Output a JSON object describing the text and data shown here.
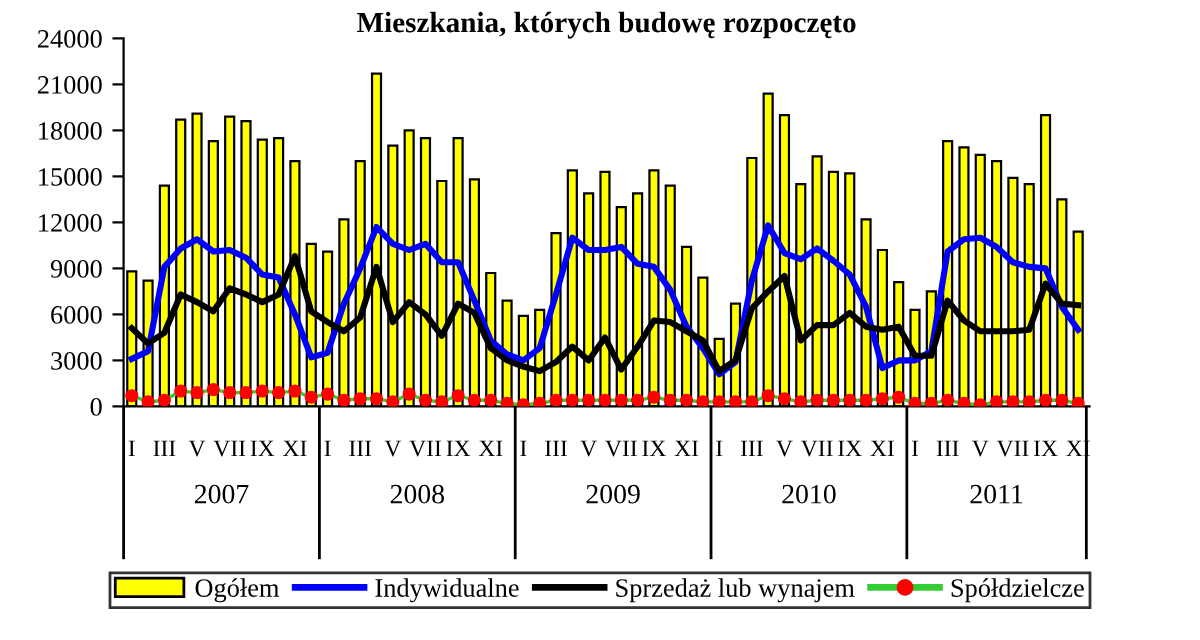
{
  "chart_data": {
    "type": "bar",
    "title": "Mieszkania, których budowę rozpoczęto",
    "categories": [
      "I",
      null,
      "III",
      null,
      "V",
      null,
      "VII",
      null,
      "IX",
      null,
      "XI",
      null,
      "I",
      null,
      "III",
      null,
      "V",
      null,
      "VII",
      null,
      "IX",
      null,
      "XI",
      null,
      "I",
      null,
      "III",
      null,
      "V",
      null,
      "VII",
      null,
      "IX",
      null,
      "XI",
      null,
      "I",
      null,
      "III",
      null,
      "V",
      null,
      "VII",
      null,
      "IX",
      null,
      "XI",
      null,
      "I",
      null,
      "III",
      null,
      "V",
      null,
      "VII",
      null,
      "IX",
      null,
      "XI"
    ],
    "annotations": [
      "2007",
      "2008",
      "2009",
      "2010",
      "2011"
    ],
    "series": [
      {
        "name": "Ogółem",
        "color": "#ffff00",
        "values": [
          8800,
          8200,
          14400,
          18700,
          19100,
          17300,
          18900,
          18600,
          17400,
          17500,
          16000,
          10600,
          10100,
          12200,
          16000,
          21700,
          17000,
          18000,
          17500,
          14700,
          17500,
          14800,
          8700,
          6900,
          5900,
          6300,
          11300,
          15400,
          13900,
          15300,
          13000,
          13900,
          15400,
          14400,
          10400,
          8400,
          4400,
          6700,
          16200,
          20400,
          19000,
          14500,
          16300,
          15300,
          15200,
          12200,
          10200,
          8100,
          6300,
          7500,
          17300,
          16900,
          16400,
          16000,
          14900,
          14500,
          19000,
          13500,
          11400
        ]
      },
      {
        "name": "Indywidualne",
        "type": "line",
        "color": "#0000ff",
        "marker": "none",
        "values": [
          3100,
          3600,
          9100,
          10300,
          10900,
          10100,
          10200,
          9700,
          8600,
          8400,
          6000,
          3200,
          3500,
          6700,
          9000,
          11700,
          10600,
          10200,
          10600,
          9400,
          9400,
          6900,
          4300,
          3400,
          3000,
          3800,
          7300,
          11000,
          10200,
          10200,
          10400,
          9300,
          9100,
          7600,
          5200,
          3800,
          2100,
          2900,
          8200,
          11800,
          10000,
          9600,
          10300,
          9500,
          8600,
          6500,
          2500,
          3000,
          3000,
          3600,
          10100,
          10900,
          11000,
          10400,
          9400,
          9100,
          9000,
          6500,
          5000
        ]
      },
      {
        "name": "Sprzedaż lub wynajem",
        "type": "line",
        "color": "#000000",
        "marker": "none",
        "values": [
          5100,
          4100,
          4800,
          7300,
          6800,
          6200,
          7700,
          7300,
          6800,
          7300,
          9800,
          6200,
          5500,
          4900,
          5800,
          9100,
          5500,
          6800,
          6000,
          4600,
          6700,
          6100,
          3800,
          3000,
          2600,
          2300,
          2900,
          3900,
          3000,
          4500,
          2400,
          3900,
          5600,
          5500,
          4900,
          4300,
          2300,
          3000,
          6400,
          7500,
          8500,
          4300,
          5300,
          5300,
          6100,
          5200,
          5000,
          5200,
          3300,
          3300,
          6900,
          5600,
          4900,
          4900,
          4900,
          5000,
          8000,
          6700,
          6600
        ]
      },
      {
        "name": "Spółdzielcze",
        "type": "line",
        "color": "#33cc33",
        "marker": "circle",
        "colors": [
          "#ff0000",
          "#ff0000",
          "#ff0000",
          "#ff0000",
          "#ff0000",
          "#ff0000",
          "#ff0000",
          "#ff0000",
          "#ff0000",
          "#ff0000",
          "#ff0000",
          "#ff0000",
          "#ff0000",
          "#ff0000",
          "#ff0000",
          "#ff0000",
          "#ff0000",
          "#ff0000",
          "#ff0000",
          "#ff0000",
          "#ff0000",
          "#ff0000",
          "#ff0000",
          "#ff0000",
          "#ff0000",
          "#ff0000",
          "#ff0000",
          "#ff0000",
          "#ff0000",
          "#ff0000",
          "#ff0000",
          "#ff0000",
          "#ff0000",
          "#ff0000",
          "#ff0000",
          "#ff0000",
          "#ff0000",
          "#ff0000",
          "#ff0000",
          "#ff0000",
          "#ff0000",
          "#ff0000",
          "#ff0000",
          "#ff0000",
          "#ff0000",
          "#ff0000",
          "#ff0000",
          "#ff0000",
          "#ff0000",
          "#ff0000",
          "#ff0000",
          "#ff0000",
          "#ff0000",
          "#ff0000",
          "#ff0000",
          "#ff0000",
          "#ff0000",
          "#ff0000",
          "#ff0000"
        ],
        "values": [
          700,
          300,
          400,
          1000,
          900,
          1100,
          900,
          900,
          1000,
          900,
          1000,
          600,
          800,
          400,
          500,
          500,
          300,
          800,
          400,
          300,
          700,
          400,
          400,
          200,
          100,
          200,
          400,
          400,
          400,
          400,
          400,
          400,
          600,
          400,
          400,
          300,
          300,
          300,
          300,
          700,
          500,
          300,
          400,
          400,
          400,
          400,
          500,
          600,
          200,
          200,
          400,
          200,
          100,
          300,
          300,
          300,
          400,
          400,
          200
        ]
      }
    ],
    "ylim": [
      0,
      24000
    ],
    "yticks": [
      0,
      3000,
      6000,
      9000,
      12000,
      15000,
      18000,
      21000,
      24000
    ],
    "grid": false,
    "legend": "bottom"
  }
}
